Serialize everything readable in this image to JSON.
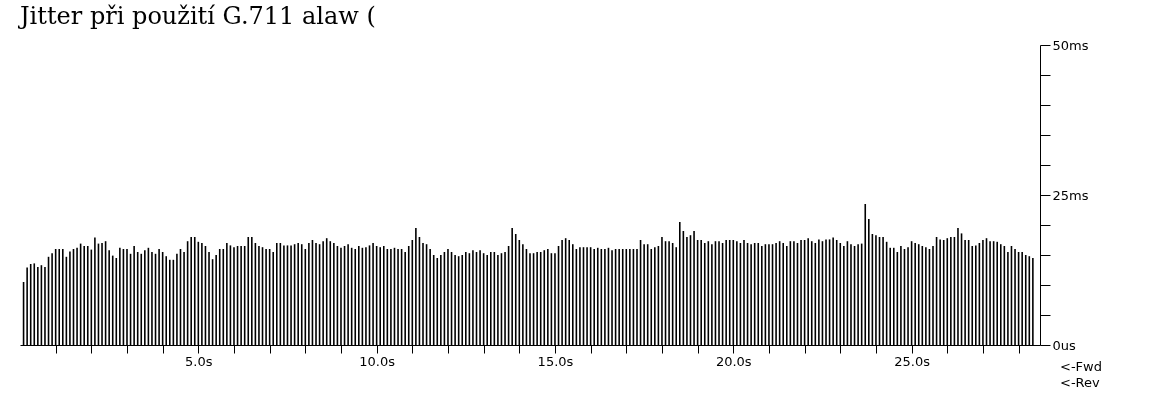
{
  "chart_data": {
    "type": "bar",
    "title": "Jitter při použití G.711 alaw (",
    "x": [
      0.1,
      0.2,
      0.3,
      0.4,
      0.5,
      0.6,
      0.7,
      0.8,
      0.9,
      1.0,
      1.1,
      1.2,
      1.3,
      1.4,
      1.5,
      1.6,
      1.7,
      1.8,
      1.9,
      2.0,
      2.1,
      2.2,
      2.3,
      2.4,
      2.5,
      2.6,
      2.7,
      2.8,
      2.9,
      3.0,
      3.1,
      3.2,
      3.3,
      3.4,
      3.5,
      3.6,
      3.7,
      3.8,
      3.9,
      4.0,
      4.1,
      4.2,
      4.3,
      4.4,
      4.5,
      4.6,
      4.7,
      4.8,
      4.9,
      5.0,
      5.1,
      5.2,
      5.3,
      5.4,
      5.5,
      5.6,
      5.7,
      5.8,
      5.9,
      6.0,
      6.1,
      6.2,
      6.3,
      6.4,
      6.5,
      6.6,
      6.7,
      6.8,
      6.9,
      7.0,
      7.1,
      7.2,
      7.3,
      7.4,
      7.5,
      7.6,
      7.7,
      7.8,
      7.9,
      8.0,
      8.1,
      8.2,
      8.3,
      8.4,
      8.5,
      8.6,
      8.7,
      8.8,
      8.9,
      9.0,
      9.1,
      9.2,
      9.3,
      9.4,
      9.5,
      9.6,
      9.7,
      9.8,
      9.9,
      10.0,
      10.1,
      10.2,
      10.3,
      10.4,
      10.5,
      10.6,
      10.7,
      10.8,
      10.9,
      11.0,
      11.1,
      11.2,
      11.3,
      11.4,
      11.5,
      11.6,
      11.7,
      11.8,
      11.9,
      12.0,
      12.1,
      12.2,
      12.3,
      12.4,
      12.5,
      12.6,
      12.7,
      12.8,
      12.9,
      13.0,
      13.1,
      13.2,
      13.3,
      13.4,
      13.5,
      13.6,
      13.7,
      13.8,
      13.9,
      14.0,
      14.1,
      14.2,
      14.3,
      14.4,
      14.5,
      14.6,
      14.7,
      14.8,
      14.9,
      15.0,
      15.1,
      15.2,
      15.3,
      15.4,
      15.5,
      15.6,
      15.7,
      15.8,
      15.9,
      16.0,
      16.1,
      16.2,
      16.3,
      16.4,
      16.5,
      16.6,
      16.7,
      16.8,
      16.9,
      17.0,
      17.1,
      17.2,
      17.3,
      17.4,
      17.5,
      17.6,
      17.7,
      17.8,
      17.9,
      18.0,
      18.1,
      18.2,
      18.3,
      18.4,
      18.5,
      18.6,
      18.7,
      18.8,
      18.9,
      19.0,
      19.1,
      19.2,
      19.3,
      19.4,
      19.5,
      19.6,
      19.7,
      19.8,
      19.9,
      20.0,
      20.1,
      20.2,
      20.3,
      20.4,
      20.5,
      20.6,
      20.7,
      20.8,
      20.9,
      21.0,
      21.1,
      21.2,
      21.3,
      21.4,
      21.5,
      21.6,
      21.7,
      21.8,
      21.9,
      22.0,
      22.1,
      22.2,
      22.3,
      22.4,
      22.5,
      22.6,
      22.7,
      22.8,
      22.9,
      23.0,
      23.1,
      23.2,
      23.3,
      23.4,
      23.5,
      23.6,
      23.7,
      23.8,
      23.9,
      24.0,
      24.1,
      24.2,
      24.3,
      24.4,
      24.5,
      24.6,
      24.7,
      24.8,
      24.9,
      25.0,
      25.1,
      25.2,
      25.3,
      25.4,
      25.5,
      25.6,
      25.7,
      25.8,
      25.9,
      26.0,
      26.1,
      26.2,
      26.3,
      26.4,
      26.5,
      26.6,
      26.7,
      26.8,
      26.9,
      27.0,
      27.1,
      27.2,
      27.3,
      27.4,
      27.5,
      27.6,
      27.7,
      27.8,
      27.9,
      28.0,
      28.1,
      28.2,
      28.3,
      28.4
    ],
    "values": [
      10.5,
      12.9,
      13.5,
      13.6,
      13,
      13.3,
      13,
      14.7,
      15.3,
      16,
      16,
      16,
      14.7,
      15.6,
      16,
      16.2,
      16.9,
      16.5,
      16.5,
      15.9,
      17.9,
      16.9,
      17,
      17.3,
      15.8,
      14.9,
      14.5,
      16.2,
      16,
      16,
      15.2,
      16.5,
      15.5,
      15.2,
      15.8,
      16.2,
      15.5,
      15.2,
      16,
      15.5,
      14.8,
      14.2,
      14.2,
      15.2,
      16,
      15.5,
      17.3,
      18,
      18,
      17.2,
      17,
      16.5,
      15.5,
      14.3,
      15,
      16,
      16,
      17,
      16.6,
      16.3,
      16.5,
      16.5,
      16.5,
      18,
      18,
      17,
      16.5,
      16.3,
      16,
      16,
      15.5,
      17,
      17,
      16.6,
      16.6,
      16.6,
      16.8,
      17,
      16.8,
      16,
      17,
      17.5,
      17,
      16.8,
      17.3,
      17.8,
      17.3,
      17,
      16.5,
      16.2,
      16.5,
      16.8,
      16.2,
      16,
      16.5,
      16.2,
      16.3,
      16.6,
      17,
      16.5,
      16.3,
      16.5,
      16,
      16,
      16.2,
      16,
      16,
      15.5,
      16.5,
      17.5,
      19.5,
      18,
      17,
      16.8,
      16,
      15,
      14.5,
      15,
      15.5,
      16,
      15.5,
      15,
      14.8,
      15,
      15.5,
      15.3,
      15.8,
      15.5,
      15.8,
      15.3,
      15,
      15.5,
      15.5,
      15,
      15.3,
      15.5,
      16.5,
      19.5,
      18.5,
      17.5,
      16.8,
      16,
      15.3,
      15.3,
      15.5,
      15.5,
      15.8,
      16,
      15.3,
      15.3,
      16.5,
      17.5,
      17.8,
      17.5,
      16.8,
      16,
      16.3,
      16.3,
      16.3,
      16.3,
      16,
      16.2,
      16,
      16,
      16.2,
      15.8,
      16,
      16,
      16,
      16,
      16,
      16,
      16,
      17.5,
      16.8,
      16.8,
      16,
      16.3,
      16.5,
      18,
      17.3,
      17.3,
      17,
      16.3,
      20.5,
      19,
      18,
      18.3,
      19,
      17.5,
      17.5,
      17,
      17.3,
      16.8,
      17.3,
      17.3,
      17,
      17.5,
      17.5,
      17.5,
      17.3,
      17,
      17.5,
      17,
      16.8,
      17,
      17,
      16.5,
      16.8,
      16.8,
      16.8,
      17,
      17.3,
      17,
      16.5,
      17.3,
      17.3,
      17,
      17.5,
      17.5,
      17.8,
      17.3,
      17,
      17.6,
      17.3,
      17.6,
      17.6,
      17.9,
      17.5,
      17,
      16.5,
      17.3,
      16.8,
      16.5,
      16.8,
      16.9,
      23.5,
      21,
      18.5,
      18.3,
      18,
      18,
      17.2,
      16.2,
      16.2,
      15.5,
      16.5,
      16,
      16.3,
      17.3,
      17,
      16.8,
      16.5,
      16.3,
      16,
      16.5,
      18,
      17.6,
      17.5,
      17.8,
      18,
      18,
      19.5,
      18.6,
      17.5,
      17.5,
      16.5,
      16.6,
      17,
      17.5,
      17.8,
      17.3,
      17.3,
      17.2,
      16.8,
      16.5,
      15.5,
      16.5,
      16,
      15.5,
      15.5,
      15,
      14.8,
      14.5
    ],
    "color": "#000000",
    "xlim": [
      0,
      28.6
    ],
    "xticks": [
      {
        "value": 1,
        "label": null
      },
      {
        "value": 2,
        "label": null
      },
      {
        "value": 3,
        "label": null
      },
      {
        "value": 4,
        "label": null
      },
      {
        "value": 5,
        "label": "5.0s"
      },
      {
        "value": 6,
        "label": null
      },
      {
        "value": 7,
        "label": null
      },
      {
        "value": 8,
        "label": null
      },
      {
        "value": 9,
        "label": null
      },
      {
        "value": 10,
        "label": "10.0s"
      },
      {
        "value": 11,
        "label": null
      },
      {
        "value": 12,
        "label": null
      },
      {
        "value": 13,
        "label": null
      },
      {
        "value": 14,
        "label": null
      },
      {
        "value": 15,
        "label": "15.0s"
      },
      {
        "value": 16,
        "label": null
      },
      {
        "value": 17,
        "label": null
      },
      {
        "value": 18,
        "label": null
      },
      {
        "value": 19,
        "label": null
      },
      {
        "value": 20,
        "label": "20.0s"
      },
      {
        "value": 21,
        "label": null
      },
      {
        "value": 22,
        "label": null
      },
      {
        "value": 23,
        "label": null
      },
      {
        "value": 24,
        "label": null
      },
      {
        "value": 25,
        "label": "25.0s"
      },
      {
        "value": 26,
        "label": null
      },
      {
        "value": 27,
        "label": null
      },
      {
        "value": 28,
        "label": null
      }
    ],
    "ylim": [
      0,
      50
    ],
    "yticks": [
      {
        "value": 0,
        "label": "0us"
      },
      {
        "value": 5,
        "label": null
      },
      {
        "value": 10,
        "label": null
      },
      {
        "value": 15,
        "label": null
      },
      {
        "value": 20,
        "label": null
      },
      {
        "value": 25,
        "label": "25ms"
      },
      {
        "value": 30,
        "label": null
      },
      {
        "value": 35,
        "label": null
      },
      {
        "value": 40,
        "label": null
      },
      {
        "value": 45,
        "label": null
      },
      {
        "value": 50,
        "label": "50ms"
      }
    ],
    "annotations": [
      "<-Fwd",
      "<-Rev"
    ],
    "grid": false
  }
}
